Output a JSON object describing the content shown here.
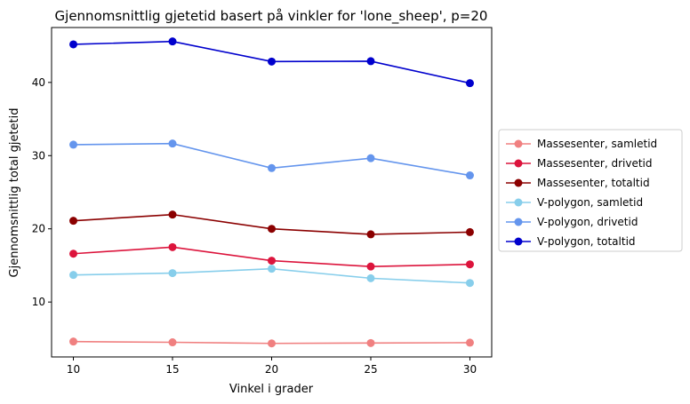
{
  "chart_data": {
    "type": "line",
    "title": "Gjennomsnittlig gjetetid basert på vinkler for 'lone_sheep', p=20",
    "xlabel": "Vinkel i grader",
    "ylabel": "Gjennomsnittlig total gjetetid",
    "x": [
      10,
      15,
      20,
      25,
      30
    ],
    "xlim": [
      8.9,
      31.1
    ],
    "ylim": [
      2.5,
      47.5
    ],
    "xticks": [
      "10",
      "15",
      "20",
      "25",
      "30"
    ],
    "yticks": [
      "10",
      "20",
      "30",
      "40"
    ],
    "grid": false,
    "legend_position": "right, outside plot",
    "series": [
      {
        "name": "Massesenter, samletid",
        "color": "#f08080",
        "values": [
          4.6,
          4.5,
          4.35,
          4.4,
          4.45
        ]
      },
      {
        "name": "Massesenter, drivetid",
        "color": "#dc143c",
        "values": [
          16.6,
          17.5,
          15.65,
          14.85,
          15.15
        ]
      },
      {
        "name": "Massesenter, totaltid",
        "color": "#8b0000",
        "values": [
          21.1,
          21.95,
          20.0,
          19.25,
          19.55
        ]
      },
      {
        "name": "V-polygon, samletid",
        "color": "#87ceeb",
        "values": [
          13.7,
          13.95,
          14.55,
          13.25,
          12.6
        ]
      },
      {
        "name": "V-polygon, drivetid",
        "color": "#6495ed",
        "values": [
          31.5,
          31.65,
          28.3,
          29.65,
          27.3
        ]
      },
      {
        "name": "V-polygon, totaltid",
        "color": "#0000cd",
        "values": [
          45.2,
          45.6,
          42.85,
          42.9,
          39.9
        ]
      }
    ]
  }
}
